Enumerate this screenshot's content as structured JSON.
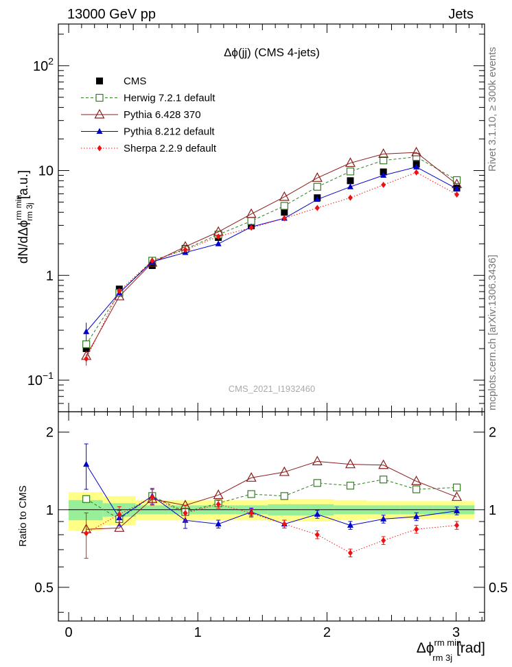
{
  "header": {
    "left": "13000 GeV pp",
    "right": "Jets"
  },
  "side_labels": {
    "top": "Rivet 3.1.10, ≥ 300k events",
    "bottom": "mcplots.cern.ch [arXiv:1306.3436]"
  },
  "watermark": "CMS_2021_I1932460",
  "colors": {
    "cms": "#000000",
    "herwig": "#2e7d1e",
    "pythia6": "#8b1a1a",
    "pythia8": "#0000cc",
    "sherpa": "#ee1111",
    "band_inner": "#99ee99",
    "band_outer": "#ffff88"
  },
  "chart_data": [
    {
      "type": "line",
      "title": "Δϕ(jj) (CMS 4-jets)",
      "ylabel": "dN/dΔϕ rm min rm 3j [a.u.]",
      "ylabel_parts": {
        "main": "dN/dΔϕ",
        "sup": "rm min",
        "sub": "rm 3j",
        "unit": " [a.u.]"
      },
      "yscale": "log",
      "ylim": [
        0.05,
        250
      ],
      "xlim": [
        -0.08,
        3.22
      ],
      "yticks": [
        {
          "value": 0.1,
          "base": "10",
          "exp": "−1"
        },
        {
          "value": 1,
          "base": "1",
          "exp": ""
        },
        {
          "value": 10,
          "base": "10",
          "exp": ""
        },
        {
          "value": 100,
          "base": "10",
          "exp": "2"
        }
      ],
      "x": [
        0.136,
        0.392,
        0.647,
        0.903,
        1.159,
        1.414,
        1.67,
        1.925,
        2.181,
        2.437,
        2.692,
        3.005
      ],
      "series": [
        {
          "name": "CMS",
          "marker": "square",
          "values": [
            0.2,
            0.74,
            1.24,
            1.81,
            2.3,
            2.97,
            4.0,
            5.5,
            8.0,
            9.7,
            11.5,
            6.8
          ]
        },
        {
          "name": "Herwig 7.2.1 default",
          "marker": "open-square",
          "line": "dashed",
          "values": [
            0.22,
            0.68,
            1.38,
            1.78,
            2.45,
            3.3,
            4.6,
            7.0,
            9.8,
            12.5,
            13.5,
            8.1
          ]
        },
        {
          "name": "Pythia 6.428 370",
          "marker": "open-triangle",
          "line": "solid",
          "values": [
            0.17,
            0.63,
            1.32,
            1.88,
            2.6,
            3.85,
            5.6,
            8.5,
            11.8,
            14.4,
            14.9,
            7.4
          ]
        },
        {
          "name": "Pythia 8.212 default",
          "marker": "triangle",
          "line": "solid",
          "values": [
            0.29,
            0.68,
            1.35,
            1.65,
            2.0,
            2.9,
            3.5,
            5.3,
            7.0,
            9.0,
            10.8,
            6.7
          ]
        },
        {
          "name": "Sherpa 2.2.9 default",
          "marker": "diamond",
          "line": "dotted",
          "values": [
            0.16,
            0.71,
            1.38,
            1.75,
            2.35,
            2.85,
            3.5,
            4.4,
            5.5,
            7.3,
            9.6,
            5.9
          ]
        }
      ]
    },
    {
      "type": "line",
      "title": "",
      "ylabel": "Ratio to CMS",
      "xlabel": "Δϕ rm min rm 3j [rad]",
      "xlabel_parts": {
        "main": "Δϕ",
        "sup": "rm min",
        "sub": "rm 3j",
        "unit": " [rad]"
      },
      "yscale": "log",
      "ylim": [
        0.37,
        2.4
      ],
      "xlim": [
        -0.08,
        3.22
      ],
      "xticks": [
        0,
        1,
        2,
        3
      ],
      "xtick_labels": [
        "0",
        "1",
        "2",
        "3"
      ],
      "yticks": [
        0.5,
        1,
        2
      ],
      "ytick_labels": [
        "0.5",
        "1",
        "2"
      ],
      "x": [
        0.136,
        0.392,
        0.647,
        0.903,
        1.159,
        1.414,
        1.67,
        1.925,
        2.181,
        2.437,
        2.692,
        3.005
      ],
      "bin_edges": [
        0.0,
        0.264,
        0.52,
        0.775,
        1.031,
        1.287,
        1.542,
        1.798,
        2.053,
        2.309,
        2.565,
        2.82,
        3.1416
      ],
      "band_inner": [
        0.09,
        0.06,
        0.04,
        0.04,
        0.04,
        0.04,
        0.05,
        0.05,
        0.04,
        0.04,
        0.04,
        0.04
      ],
      "band_outer": [
        0.17,
        0.13,
        0.09,
        0.09,
        0.09,
        0.09,
        0.1,
        0.1,
        0.09,
        0.08,
        0.08,
        0.08
      ],
      "series": [
        {
          "name": "Herwig 7.2.1 default",
          "values": [
            1.1,
            0.92,
            1.13,
            0.98,
            1.06,
            1.15,
            1.13,
            1.27,
            1.24,
            1.31,
            1.2,
            1.22
          ]
        },
        {
          "name": "Pythia 6.428 370",
          "values": [
            0.84,
            0.85,
            1.1,
            1.04,
            1.14,
            1.33,
            1.4,
            1.54,
            1.5,
            1.49,
            1.29,
            1.12
          ]
        },
        {
          "name": "Pythia 8.212 default",
          "values": [
            1.5,
            0.93,
            1.13,
            0.91,
            0.88,
            0.98,
            0.88,
            0.96,
            0.87,
            0.92,
            0.94,
            0.99
          ]
        },
        {
          "name": "Sherpa 2.2.9 default",
          "values": [
            0.81,
            0.96,
            1.12,
            0.97,
            1.05,
            0.97,
            0.88,
            0.8,
            0.68,
            0.76,
            0.84,
            0.87
          ]
        }
      ]
    }
  ]
}
